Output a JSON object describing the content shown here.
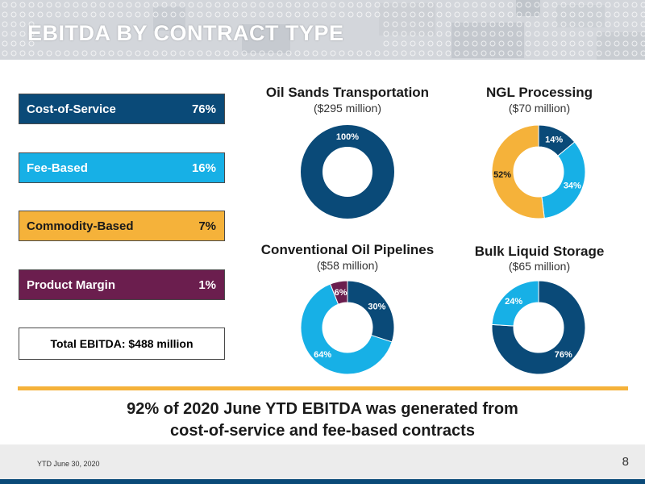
{
  "header": {
    "title": "EBITDA BY CONTRACT TYPE"
  },
  "legend": {
    "items": [
      {
        "label": "Cost-of-Service",
        "value": "76%",
        "color": "#0a4a78",
        "text_color": "#ffffff"
      },
      {
        "label": "Fee-Based",
        "value": "16%",
        "color": "#17b0e6",
        "text_color": "#ffffff"
      },
      {
        "label": "Commodity-Based",
        "value": "7%",
        "color": "#f5b23a",
        "text_color": "#1a1a1a"
      },
      {
        "label": "Product Margin",
        "value": "1%",
        "color": "#6b1e4e",
        "text_color": "#ffffff"
      }
    ],
    "total": "Total EBITDA: $488 million"
  },
  "chart_data": [
    {
      "type": "pie",
      "title": "Oil Sands Transportation",
      "subtitle": "($295 million)",
      "slices": [
        {
          "name": "Cost-of-Service",
          "value": 100,
          "label": "100%"
        }
      ]
    },
    {
      "type": "pie",
      "title": "NGL Processing",
      "subtitle": "($70 million)",
      "slices": [
        {
          "name": "Cost-of-Service",
          "value": 14,
          "label": "14%"
        },
        {
          "name": "Fee-Based",
          "value": 34,
          "label": "34%"
        },
        {
          "name": "Commodity-Based",
          "value": 52,
          "label": "52%"
        }
      ]
    },
    {
      "type": "pie",
      "title": "Conventional Oil Pipelines",
      "subtitle": "($58 million)",
      "slices": [
        {
          "name": "Cost-of-Service",
          "value": 30,
          "label": "30%"
        },
        {
          "name": "Fee-Based",
          "value": 64,
          "label": "64%"
        },
        {
          "name": "Product Margin",
          "value": 6,
          "label": "6%"
        }
      ]
    },
    {
      "type": "pie",
      "title": "Bulk Liquid Storage",
      "subtitle": "($65 million)",
      "slices": [
        {
          "name": "Cost-of-Service",
          "value": 76,
          "label": "76%"
        },
        {
          "name": "Fee-Based",
          "value": 24,
          "label": "24%"
        }
      ]
    }
  ],
  "summary": {
    "line1": "92% of 2020 June YTD EBITDA was generated from",
    "line2": "cost-of-service and fee-based contracts"
  },
  "footer": {
    "note": "YTD June 30, 2020",
    "page": "8"
  }
}
